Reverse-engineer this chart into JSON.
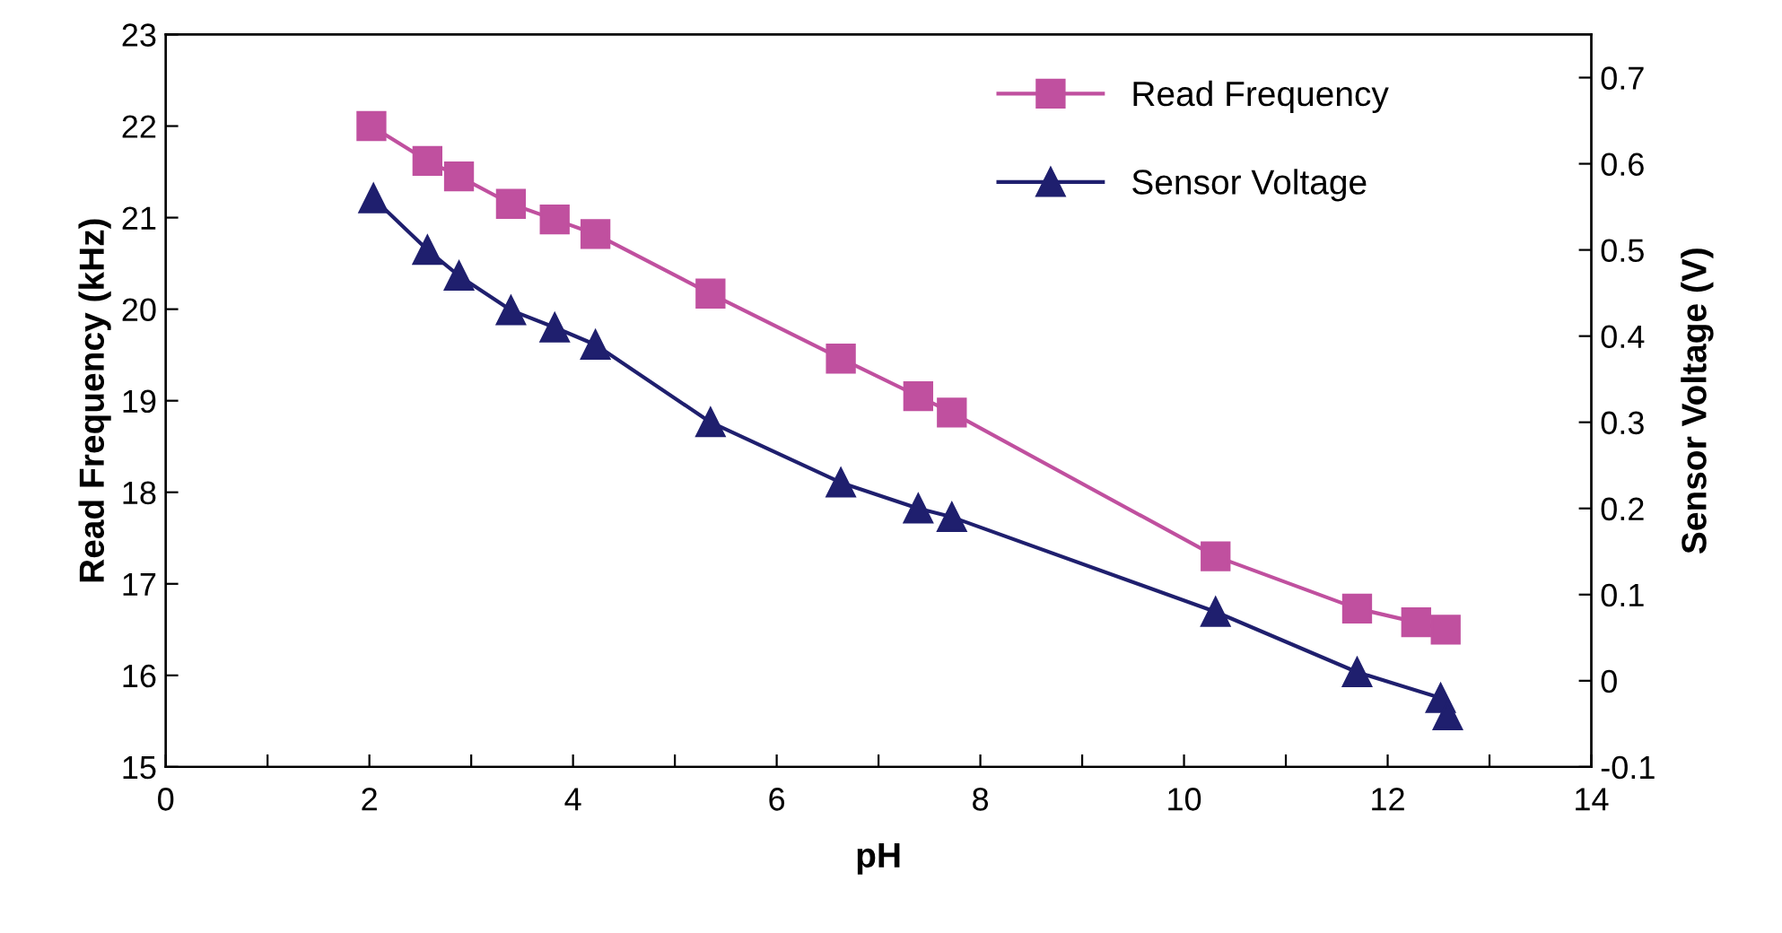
{
  "chart_data": {
    "type": "line",
    "xlabel": "pH",
    "ylabel": "Read Frequency (kHz)",
    "y2label": "Sensor Voltage (V)",
    "xlim": [
      0,
      14
    ],
    "xticks": [
      0,
      {
        "value": 1,
        "label": null
      },
      2,
      {
        "value": 3,
        "label": null
      },
      4,
      {
        "value": 5,
        "label": null
      },
      6,
      {
        "value": 7,
        "label": null
      },
      8,
      {
        "value": 9,
        "label": null
      },
      10,
      {
        "value": 11,
        "label": null
      },
      12,
      {
        "value": 13,
        "label": null
      },
      14
    ],
    "ylim": [
      15,
      23
    ],
    "yticks": [
      15,
      16,
      17,
      18,
      19,
      20,
      21,
      22,
      23
    ],
    "y2lim": [
      -0.1,
      0.75
    ],
    "y2ticks": [
      -0.1,
      0,
      0.1,
      0.2,
      0.3,
      0.4,
      0.5,
      0.6,
      0.7
    ],
    "grid": false,
    "legend": "top right",
    "line_style": "solid",
    "series": [
      {
        "name": "Read Frequency",
        "color": "#c0509f",
        "marker": "square",
        "x": [
          2.02,
          2.57,
          2.88,
          3.39,
          3.82,
          4.22,
          5.35,
          6.63,
          7.39,
          7.72,
          10.31,
          11.7,
          12.28,
          12.57
        ],
        "values": [
          22.0,
          21.62,
          21.45,
          21.15,
          20.98,
          20.82,
          20.17,
          19.46,
          19.05,
          18.87,
          17.3,
          16.73,
          16.58,
          16.5
        ]
      },
      {
        "name": "Sensor Voltage",
        "color": "#1f1f6e",
        "marker": "triangle",
        "axis": "y2",
        "x": [
          2.04,
          2.57,
          2.88,
          3.39,
          3.82,
          4.22,
          5.35,
          6.63,
          7.39,
          7.72,
          10.31,
          11.7,
          12.52,
          12.59
        ],
        "values": [
          0.56,
          0.5,
          0.47,
          0.43,
          0.41,
          0.39,
          0.3,
          0.23,
          0.2,
          0.19,
          0.08,
          0.01,
          -0.02,
          -0.04
        ]
      }
    ]
  }
}
